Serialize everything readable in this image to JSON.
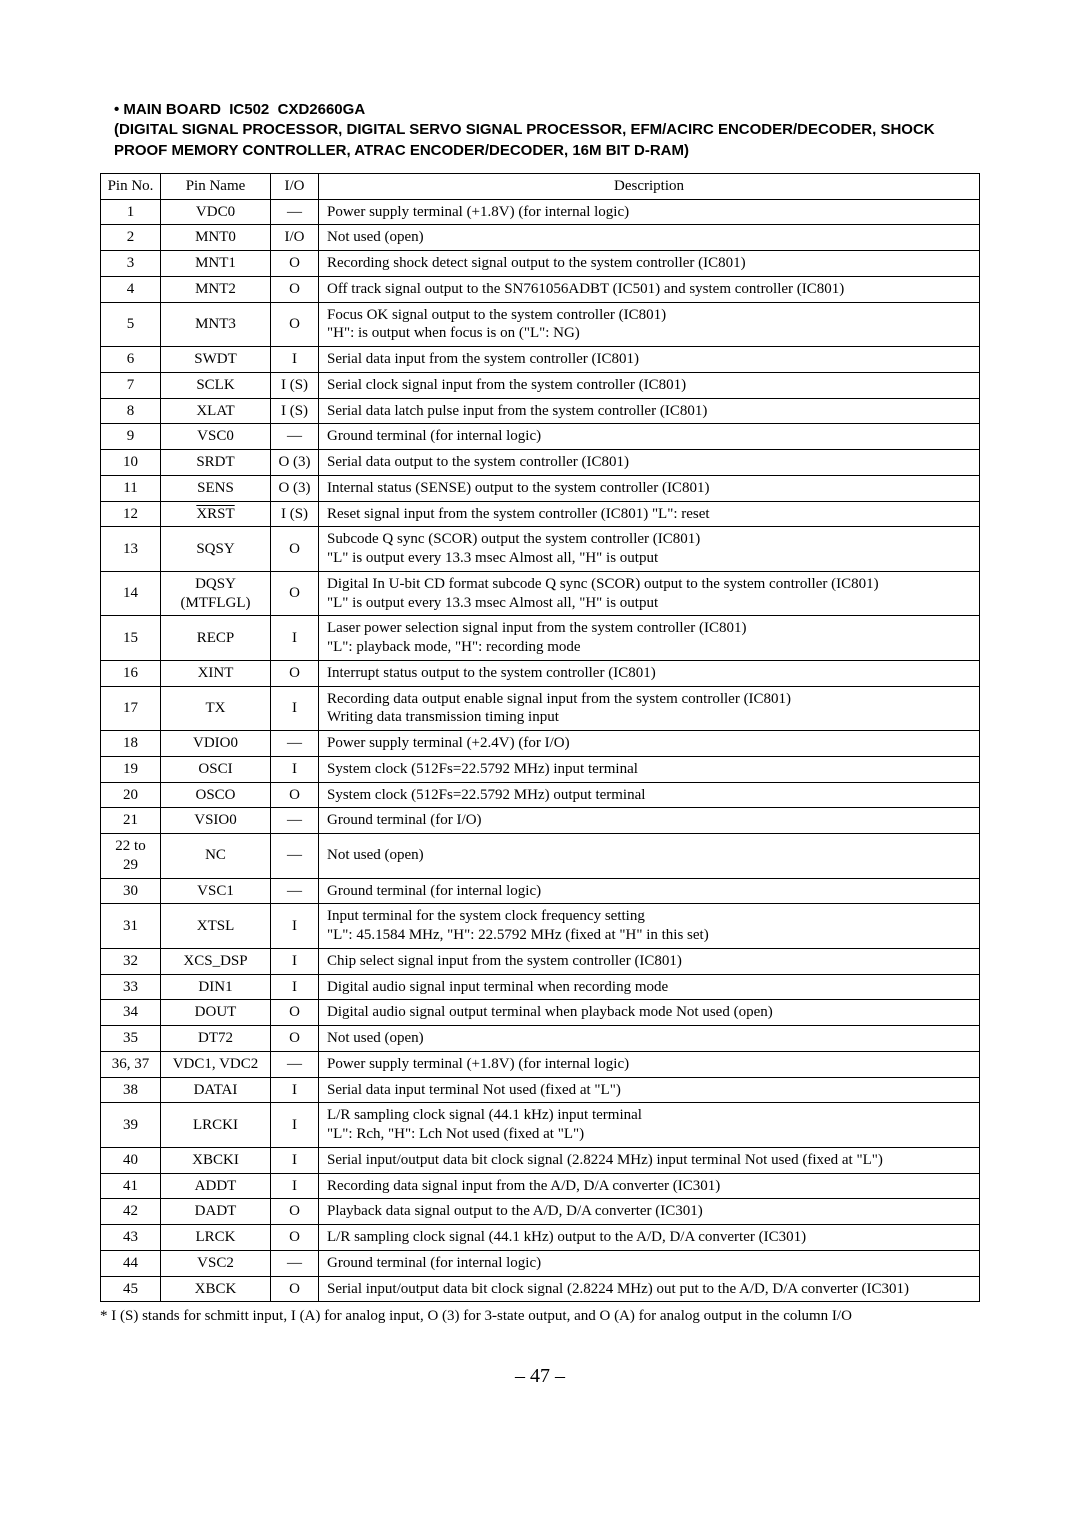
{
  "heading": {
    "line1": "• MAIN BOARD  IC502  CXD2660GA",
    "line2": "(DIGITAL SIGNAL PROCESSOR,  DIGITAL SERVO SIGNAL PROCESSOR, EFM/ACIRC ENCODER/DECODER, SHOCK PROOF MEMORY CONTROLLER,  ATRAC ENCODER/DECODER, 16M BIT D-RAM)"
  },
  "columns": [
    "Pin No.",
    "Pin Name",
    "I/O",
    "Description"
  ],
  "rows": [
    {
      "no": "1",
      "name": "VDC0",
      "io": "—",
      "desc": "Power supply terminal (+1.8V) (for internal logic)"
    },
    {
      "no": "2",
      "name": "MNT0",
      "io": "I/O",
      "desc": "Not used (open)"
    },
    {
      "no": "3",
      "name": "MNT1",
      "io": "O",
      "desc": "Recording shock detect signal output to the system  controller (IC801)"
    },
    {
      "no": "4",
      "name": "MNT2",
      "io": "O",
      "desc": "Off track signal output to the SN761056ADBT (IC501) and system  controller (IC801)"
    },
    {
      "no": "5",
      "name": "MNT3",
      "io": "O",
      "desc": "Focus OK signal output to the system controller (IC801)\n\"H\": is output when focus is on (\"L\": NG)"
    },
    {
      "no": "6",
      "name": "SWDT",
      "io": "I",
      "desc": "Serial data input from the system controller (IC801)"
    },
    {
      "no": "7",
      "name": "SCLK",
      "io": "I (S)",
      "desc": "Serial clock signal input from the system controller (IC801)"
    },
    {
      "no": "8",
      "name": "XLAT",
      "io": "I (S)",
      "desc": "Serial data latch pulse input from the system controller (IC801)"
    },
    {
      "no": "9",
      "name": "VSC0",
      "io": "—",
      "desc": "Ground terminal (for internal logic)"
    },
    {
      "no": "10",
      "name": "SRDT",
      "io": "O (3)",
      "desc": "Serial data output to the system controller (IC801)"
    },
    {
      "no": "11",
      "name": "SENS",
      "io": "O (3)",
      "desc": "Internal status (SENSE) output to the system controller (IC801)"
    },
    {
      "no": "12",
      "name": "XRST",
      "overline": true,
      "io": "I (S)",
      "desc": "Reset signal input from the system controller (IC801)    \"L\": reset"
    },
    {
      "no": "13",
      "name": "SQSY",
      "io": "O",
      "desc": "Subcode Q sync (SCOR) output the system controller (IC801)\n\"L\" is output every 13.3 msec    Almost all, \"H\" is output"
    },
    {
      "no": "14",
      "name": "DQSY\n(MTFLGL)",
      "io": "O",
      "desc": "Digital In U-bit CD format subcode Q sync (SCOR) output to the system controller (IC801)\n\"L\" is output every 13.3 msec    Almost all, \"H\" is output"
    },
    {
      "no": "15",
      "name": "RECP",
      "io": "I",
      "desc": "Laser power selection signal input from the system controller (IC801)\n\"L\": playback mode, \"H\": recording mode"
    },
    {
      "no": "16",
      "name": "XINT",
      "io": "O",
      "desc": "Interrupt status output to the system controller (IC801)"
    },
    {
      "no": "17",
      "name": "TX",
      "io": "I",
      "desc": "Recording data output enable signal input from the system controller (IC801)\nWriting data transmission timing input"
    },
    {
      "no": "18",
      "name": "VDIO0",
      "io": "—",
      "desc": "Power supply terminal (+2.4V) (for I/O)"
    },
    {
      "no": "19",
      "name": "OSCI",
      "io": "I",
      "desc": "System clock (512Fs=22.5792 MHz) input terminal"
    },
    {
      "no": "20",
      "name": "OSCO",
      "io": "O",
      "desc": "System clock (512Fs=22.5792 MHz) output terminal"
    },
    {
      "no": "21",
      "name": "VSIO0",
      "io": "—",
      "desc": "Ground terminal (for I/O)"
    },
    {
      "no": "22 to 29",
      "name": "NC",
      "io": "—",
      "desc": "Not used (open)"
    },
    {
      "no": "30",
      "name": "VSC1",
      "io": "—",
      "desc": "Ground terminal (for internal logic)"
    },
    {
      "no": "31",
      "name": "XTSL",
      "io": "I",
      "desc": "Input terminal for the system clock frequency setting\n\"L\": 45.1584 MHz, \"H\": 22.5792 MHz (fixed at \"H\" in this set)"
    },
    {
      "no": "32",
      "name": "XCS_DSP",
      "io": "I",
      "desc": "Chip select signal input from the system controller (IC801)"
    },
    {
      "no": "33",
      "name": "DIN1",
      "io": "I",
      "desc": "Digital audio signal input terminal when recording mode"
    },
    {
      "no": "34",
      "name": "DOUT",
      "io": "O",
      "desc": "Digital audio signal output terminal when playback mode    Not used (open)"
    },
    {
      "no": "35",
      "name": "DT72",
      "io": "O",
      "desc": "Not used (open)"
    },
    {
      "no": "36, 37",
      "name": "VDC1, VDC2",
      "io": "—",
      "desc": "Power supply terminal (+1.8V) (for internal logic)"
    },
    {
      "no": "38",
      "name": "DATAI",
      "io": "I",
      "desc": "Serial data input terminal    Not used (fixed at \"L\")"
    },
    {
      "no": "39",
      "name": "LRCKI",
      "io": "I",
      "desc": "L/R sampling clock signal (44.1 kHz) input terminal\n\"L\": Rch, \"H\": Lch    Not used (fixed at \"L\")"
    },
    {
      "no": "40",
      "name": "XBCKI",
      "io": "I",
      "desc": "Serial input/output data bit clock signal (2.8224 MHz) input terminal    Not used (fixed at \"L\")"
    },
    {
      "no": "41",
      "name": "ADDT",
      "io": "I",
      "desc": "Recording data signal input from the A/D, D/A converter (IC301)"
    },
    {
      "no": "42",
      "name": "DADT",
      "io": "O",
      "desc": "Playback data signal output to the A/D, D/A converter (IC301)"
    },
    {
      "no": "43",
      "name": "LRCK",
      "io": "O",
      "desc": "L/R sampling clock signal (44.1 kHz) output to the A/D, D/A converter (IC301)"
    },
    {
      "no": "44",
      "name": "VSC2",
      "io": "—",
      "desc": "Ground terminal (for internal logic)"
    },
    {
      "no": "45",
      "name": "XBCK",
      "io": "O",
      "desc": "Serial input/output data bit clock signal (2.8224 MHz) out put to the A/D, D/A converter (IC301)"
    }
  ],
  "footnote": "* I (S) stands for schmitt input, I (A) for analog input, O (3) for 3-state output, and O (A) for analog output in the column I/O",
  "page": "– 47 –"
}
